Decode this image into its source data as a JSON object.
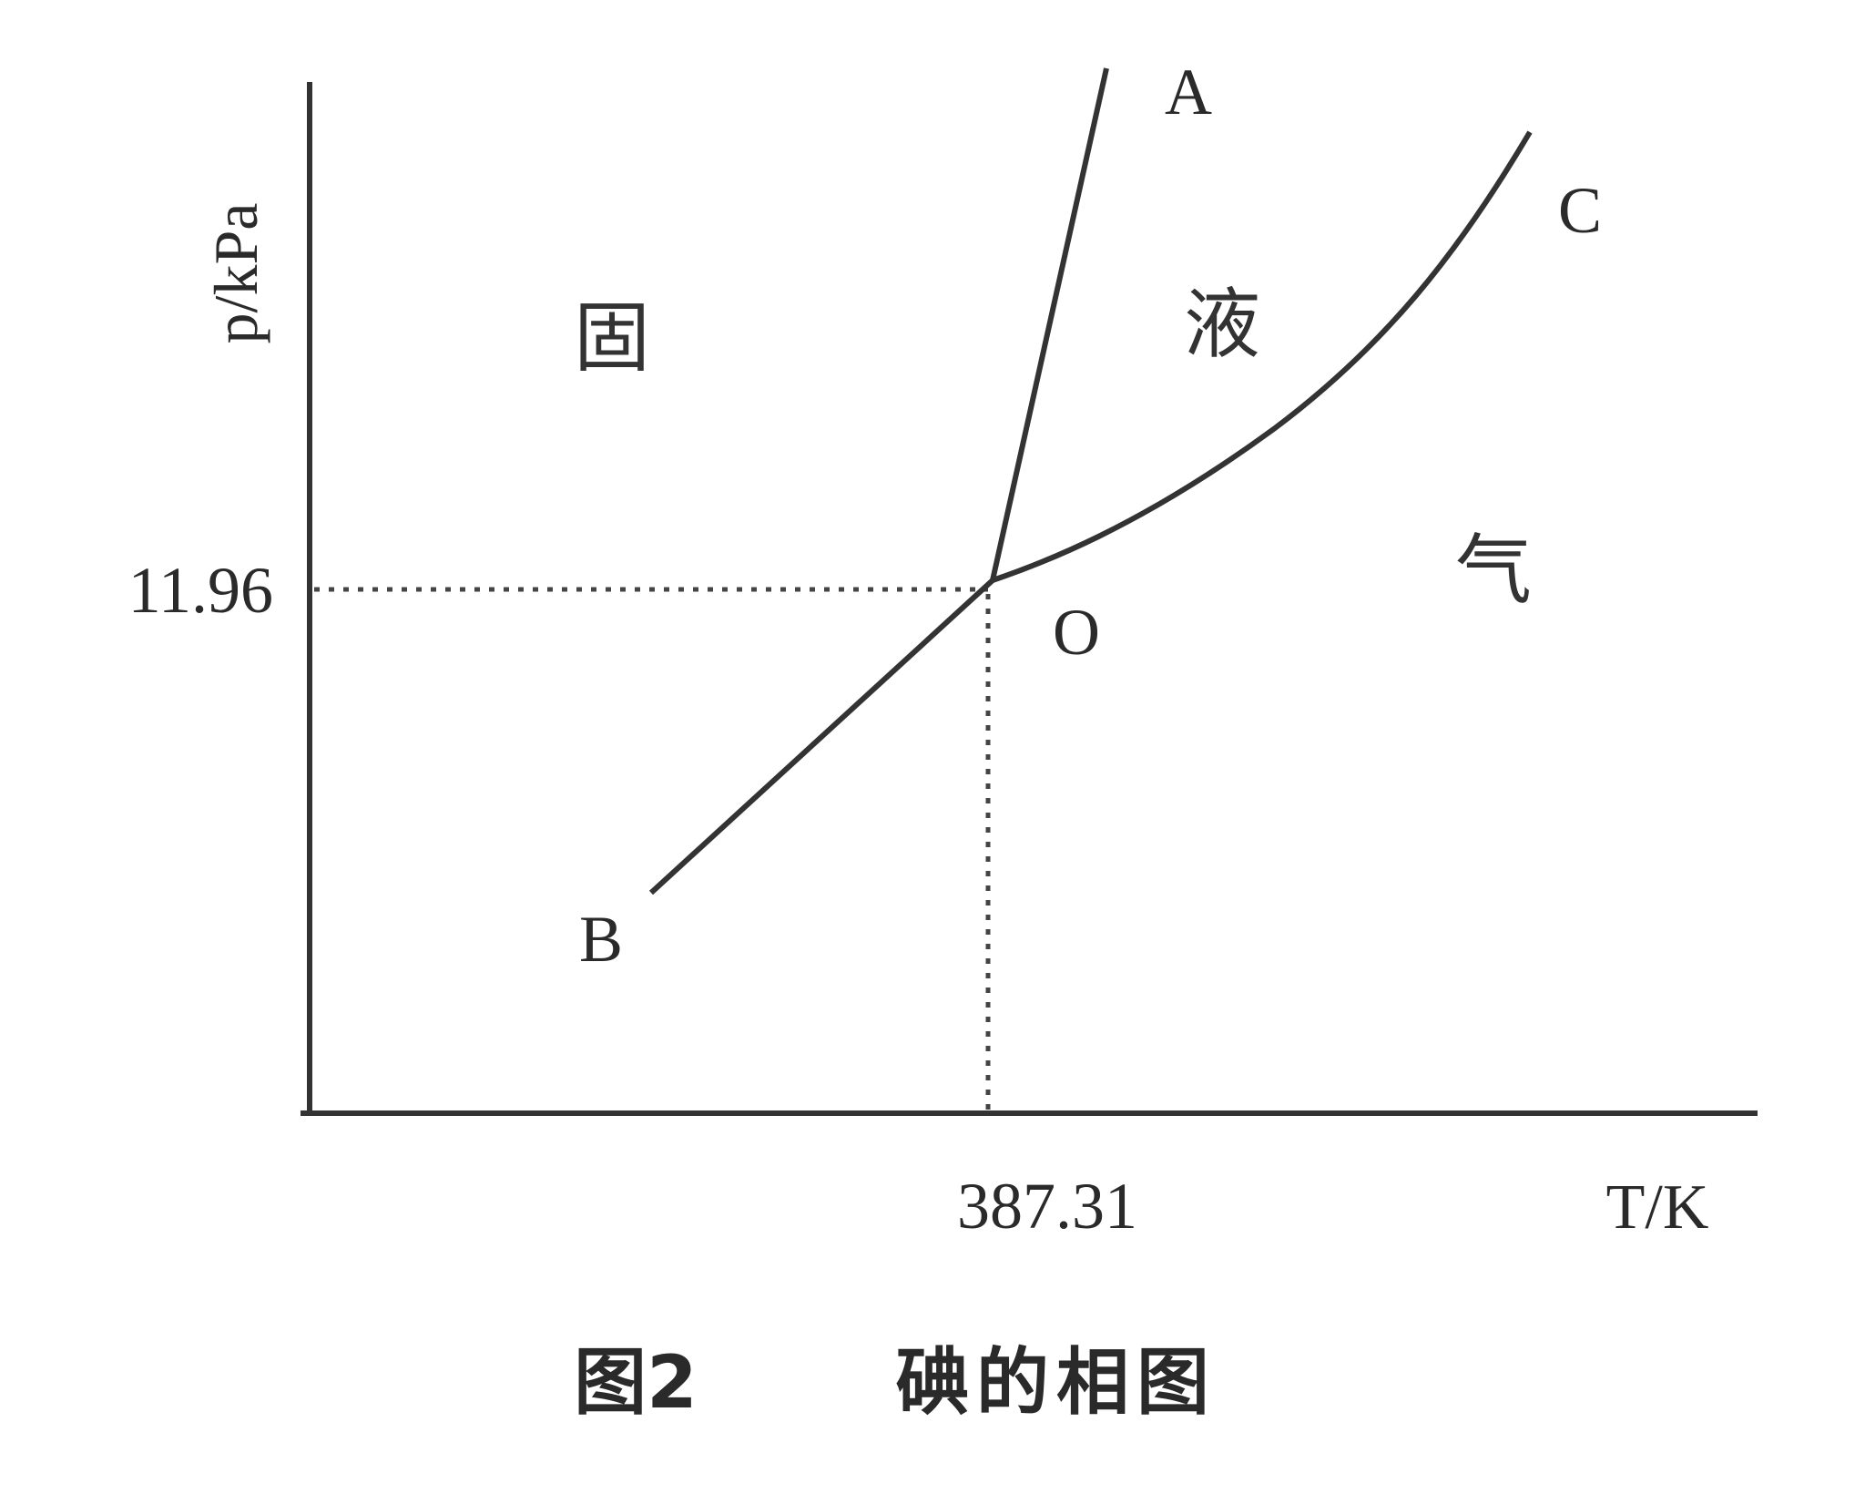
{
  "figure": {
    "caption_number": "图2",
    "caption_title": "碘的相图",
    "x_axis_label": "T/K",
    "y_axis_label": "p/kPa",
    "triple_point": {
      "label": "O",
      "temperature_label": "387.31",
      "pressure_label": "11.96"
    },
    "curve_labels": {
      "a": "A",
      "b": "B",
      "c": "C"
    },
    "regions": {
      "solid": "固",
      "liquid": "液",
      "gas": "气"
    }
  },
  "colors": {
    "line": "#333333",
    "background": "#ffffff"
  }
}
